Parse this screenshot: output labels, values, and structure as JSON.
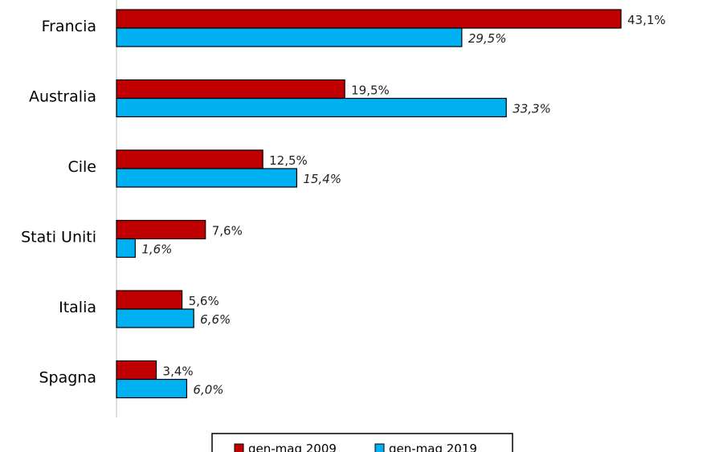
{
  "chart_data": {
    "type": "bar",
    "orientation": "horizontal",
    "categories": [
      "Francia",
      "Australia",
      "Cile",
      "Stati Uniti",
      "Italia",
      "Spagna"
    ],
    "series": [
      {
        "name": "gen-mag 2009",
        "color": "#c00000",
        "values": [
          43.1,
          19.5,
          12.5,
          7.6,
          5.6,
          3.4
        ],
        "labels": [
          "43,1%",
          "19,5%",
          "12,5%",
          "7,6%",
          "5,6%",
          "3,4%"
        ]
      },
      {
        "name": "gen-mag 2019",
        "color": "#00b0f0",
        "values": [
          29.5,
          33.3,
          15.4,
          1.6,
          6.6,
          6.0
        ],
        "labels": [
          "29,5%",
          "33,3%",
          "15,4%",
          "1,6%",
          "6,6%",
          "6,0%"
        ]
      }
    ],
    "xlim": [
      0,
      50
    ],
    "grid": false,
    "legend_position": "bottom"
  }
}
